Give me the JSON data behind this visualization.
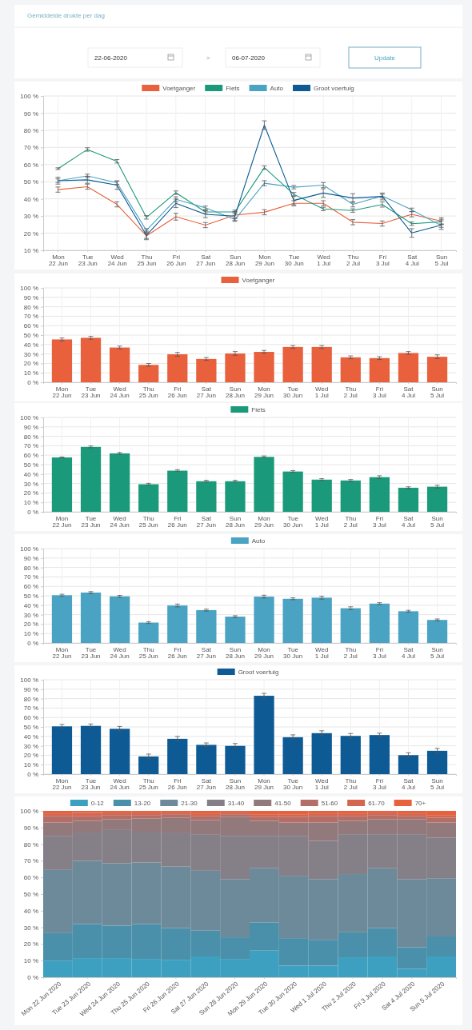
{
  "chart_data": [
    {
      "type": "other",
      "title": "Gemiddelde drukte per dag",
      "annotations": [
        "22-06-2020",
        ">",
        "06-07-2020",
        "Update"
      ]
    },
    {
      "type": "line",
      "categories": [
        "Mon 22 Jun",
        "Tue 23 Jun",
        "Wed 24 Jun",
        "Thu 25 Jun",
        "Fri 26 Jun",
        "Sat 27 Jun",
        "Sun 28 Jun",
        "Mon 29 Jun",
        "Tue 30 Jun",
        "Wed 1 Jul",
        "Thu 2 Jul",
        "Fri 3 Jul",
        "Sat 4 Jul",
        "Sun 5 Jul"
      ],
      "ylim": [
        10,
        100
      ],
      "yticks": [
        {
          "value": 10,
          "label": "10 %"
        },
        {
          "value": 20,
          "label": "20 %"
        },
        {
          "value": 30,
          "label": "30 %"
        },
        {
          "value": 40,
          "label": "40 %"
        },
        {
          "value": 50,
          "label": "50 %"
        },
        {
          "value": 60,
          "label": "60 %"
        },
        {
          "value": 70,
          "label": "70 %"
        },
        {
          "value": 80,
          "label": "80 %"
        },
        {
          "value": 90,
          "label": "90 %"
        },
        {
          "value": 100,
          "label": "100 %"
        }
      ],
      "grid": true,
      "legend": "top",
      "series": [
        {
          "name": "Voetganger",
          "color": "#e8603c",
          "values": [
            45.4,
            47.1,
            36.8,
            18.4,
            29.6,
            24.7,
            30.5,
            32.2,
            37.4,
            37.4,
            26.4,
            25.6,
            31.0,
            27.0
          ],
          "errors": [
            1.5,
            1.5,
            1.5,
            1.5,
            2,
            1.5,
            2,
            1.5,
            1.5,
            1.5,
            1.5,
            1.5,
            1.5,
            2
          ]
        },
        {
          "name": "Fiets",
          "color": "#1a9a7a",
          "values": [
            57.6,
            68.8,
            61.9,
            29.2,
            43.6,
            32.4,
            32.4,
            58.2,
            42.7,
            34.1,
            33.2,
            36.7,
            25.5,
            26.6
          ],
          "errors": [
            0.5,
            1,
            1,
            1,
            1,
            1,
            1,
            1,
            1,
            1,
            1,
            1.5,
            1,
            1.5
          ]
        },
        {
          "name": "Auto",
          "color": "#4aa3c2",
          "values": [
            50.6,
            53.4,
            49.4,
            21.6,
            39.7,
            34.8,
            27.9,
            49.1,
            46.8,
            48.0,
            36.8,
            41.7,
            33.6,
            24.4
          ],
          "errors": [
            1,
            1,
            1,
            1,
            1.5,
            1,
            1,
            1.5,
            1,
            1.5,
            1.5,
            1,
            1,
            1
          ]
        },
        {
          "name": "Groot voertuig",
          "color": "#0d5a94",
          "values": [
            50.6,
            51.1,
            48.0,
            18.7,
            37.4,
            31.0,
            29.9,
            83.0,
            39.1,
            43.4,
            40.5,
            41.4,
            20.1,
            24.7
          ],
          "errors": [
            2,
            2,
            2.5,
            2.5,
            2.5,
            2,
            2.5,
            2.5,
            2.5,
            2.5,
            2.5,
            2,
            2.5,
            2.5
          ]
        }
      ]
    },
    {
      "type": "bar",
      "categories": [
        "Mon 22 Jun",
        "Tue 23 Jun",
        "Wed 24 Jun",
        "Thu 25 Jun",
        "Fri 26 Jun",
        "Sat 27 Jun",
        "Sun 28 Jun",
        "Mon 29 Jun",
        "Tue 30 Jun",
        "Wed 1 Jul",
        "Thu 2 Jul",
        "Fri 3 Jul",
        "Sat 4 Jul",
        "Sun 5 Jul"
      ],
      "ylim": [
        0,
        100
      ],
      "yticks": [
        {
          "value": 0,
          "label": "0 %"
        },
        {
          "value": 10,
          "label": "10 %"
        },
        {
          "value": 20,
          "label": "20 %"
        },
        {
          "value": 30,
          "label": "30 %"
        },
        {
          "value": 40,
          "label": "40 %"
        },
        {
          "value": 50,
          "label": "50 %"
        },
        {
          "value": 60,
          "label": "60 %"
        },
        {
          "value": 70,
          "label": "70 %"
        },
        {
          "value": 80,
          "label": "80 %"
        },
        {
          "value": 90,
          "label": "90 %"
        },
        {
          "value": 100,
          "label": "100 %"
        }
      ],
      "grid": true,
      "legend": "top",
      "series": [
        {
          "name": "Voetganger",
          "color": "#e8603c",
          "values": [
            45.4,
            47.1,
            36.8,
            18.4,
            29.6,
            24.7,
            30.5,
            32.2,
            37.4,
            37.4,
            26.4,
            25.6,
            31.0,
            27.0
          ],
          "errors": [
            1.5,
            1.5,
            1.5,
            1.5,
            2,
            1.5,
            2,
            1.5,
            1.5,
            1.5,
            1.5,
            1.5,
            1.5,
            2
          ]
        }
      ]
    },
    {
      "type": "bar",
      "categories": [
        "Mon 22 Jun",
        "Tue 23 Jun",
        "Wed 24 Jun",
        "Thu 25 Jun",
        "Fri 26 Jun",
        "Sat 27 Jun",
        "Sun 28 Jun",
        "Mon 29 Jun",
        "Tue 30 Jun",
        "Wed 1 Jul",
        "Thu 2 Jul",
        "Fri 3 Jul",
        "Sat 4 Jul",
        "Sun 5 Jul"
      ],
      "ylim": [
        0,
        100
      ],
      "yticks": [
        {
          "value": 0,
          "label": "0 %"
        },
        {
          "value": 10,
          "label": "10 %"
        },
        {
          "value": 20,
          "label": "20 %"
        },
        {
          "value": 30,
          "label": "30 %"
        },
        {
          "value": 40,
          "label": "40 %"
        },
        {
          "value": 50,
          "label": "50 %"
        },
        {
          "value": 60,
          "label": "60 %"
        },
        {
          "value": 70,
          "label": "70 %"
        },
        {
          "value": 80,
          "label": "80 %"
        },
        {
          "value": 90,
          "label": "90 %"
        },
        {
          "value": 100,
          "label": "100 %"
        }
      ],
      "grid": true,
      "legend": "top",
      "series": [
        {
          "name": "Fiets",
          "color": "#1a9a7a",
          "values": [
            57.6,
            68.8,
            61.9,
            29.2,
            43.6,
            32.4,
            32.4,
            58.2,
            42.7,
            34.1,
            33.2,
            36.7,
            25.5,
            26.6
          ],
          "errors": [
            0.5,
            1,
            1,
            1,
            1,
            1,
            1,
            1,
            1,
            1,
            1,
            1.5,
            1,
            1.5
          ]
        }
      ]
    },
    {
      "type": "bar",
      "categories": [
        "Mon 22 Jun",
        "Tue 23 Jun",
        "Wed 24 Jun",
        "Thu 25 Jun",
        "Fri 26 Jun",
        "Sat 27 Jun",
        "Sun 28 Jun",
        "Mon 29 Jun",
        "Tue 30 Jun",
        "Wed 1 Jul",
        "Thu 2 Jul",
        "Fri 3 Jul",
        "Sat 4 Jul",
        "Sun 5 Jul"
      ],
      "ylim": [
        0,
        100
      ],
      "yticks": [
        {
          "value": 0,
          "label": "0 %"
        },
        {
          "value": 10,
          "label": "10 %"
        },
        {
          "value": 20,
          "label": "20 %"
        },
        {
          "value": 30,
          "label": "30 %"
        },
        {
          "value": 40,
          "label": "40 %"
        },
        {
          "value": 50,
          "label": "50 %"
        },
        {
          "value": 60,
          "label": "60 %"
        },
        {
          "value": 70,
          "label": "70 %"
        },
        {
          "value": 80,
          "label": "80 %"
        },
        {
          "value": 90,
          "label": "90 %"
        },
        {
          "value": 100,
          "label": "100 %"
        }
      ],
      "grid": true,
      "legend": "top",
      "series": [
        {
          "name": "Auto",
          "color": "#4aa3c2",
          "values": [
            50.6,
            53.4,
            49.4,
            21.6,
            39.7,
            34.8,
            27.9,
            49.1,
            46.8,
            48.0,
            36.8,
            41.7,
            33.6,
            24.4
          ],
          "errors": [
            1,
            1,
            1,
            1,
            1.5,
            1,
            1,
            1.5,
            1,
            1.5,
            1.5,
            1,
            1,
            1
          ]
        }
      ]
    },
    {
      "type": "bar",
      "categories": [
        "Mon 22 Jun",
        "Tue 23 Jun",
        "Wed 24 Jun",
        "Thu 25 Jun",
        "Fri 26 Jun",
        "Sat 27 Jun",
        "Sun 28 Jun",
        "Mon 29 Jun",
        "Tue 30 Jun",
        "Wed 1 Jul",
        "Thu 2 Jul",
        "Fri 3 Jul",
        "Sat 4 Jul",
        "Sun 5 Jul"
      ],
      "ylim": [
        0,
        100
      ],
      "yticks": [
        {
          "value": 0,
          "label": "0 %"
        },
        {
          "value": 10,
          "label": "10 %"
        },
        {
          "value": 20,
          "label": "20 %"
        },
        {
          "value": 30,
          "label": "30 %"
        },
        {
          "value": 40,
          "label": "40 %"
        },
        {
          "value": 50,
          "label": "50 %"
        },
        {
          "value": 60,
          "label": "60 %"
        },
        {
          "value": 70,
          "label": "70 %"
        },
        {
          "value": 80,
          "label": "80 %"
        },
        {
          "value": 90,
          "label": "90 %"
        },
        {
          "value": 100,
          "label": "100 %"
        }
      ],
      "grid": true,
      "legend": "top",
      "series": [
        {
          "name": "Groot voertuig",
          "color": "#0d5a94",
          "values": [
            50.6,
            51.1,
            48.0,
            18.7,
            37.4,
            31.0,
            29.9,
            83.0,
            39.1,
            43.4,
            40.5,
            41.4,
            20.1,
            24.7
          ],
          "errors": [
            2,
            2,
            2.5,
            2.5,
            2.5,
            2,
            2.5,
            2.5,
            2.5,
            2.5,
            2.5,
            2,
            2.5,
            2.5
          ]
        }
      ]
    },
    {
      "type": "bar",
      "stacked": true,
      "categories": [
        "Mon 22 Jun 2020",
        "Tue 23 Jun 2020",
        "Wed 24 Jun 2020",
        "Thu 25 Jun 2020",
        "Fri 26 Jun 2020",
        "Sat 27 Jun 2020",
        "Sun 28 Jun 2020",
        "Mon 29 Jun 2020",
        "Tue 30 Jun 2020",
        "Wed 1 Jul 2020",
        "Thu 2 Jul 2020",
        "Fri 3 Jul 2020",
        "Sat 4 Jul 2020",
        "Sun 5 Jul 2020"
      ],
      "ylim": [
        0,
        100
      ],
      "yticks": [
        {
          "value": 0,
          "label": "0 %"
        },
        {
          "value": 10,
          "label": "10 %"
        },
        {
          "value": 20,
          "label": "20 %"
        },
        {
          "value": 30,
          "label": "30 %"
        },
        {
          "value": 40,
          "label": "40 %"
        },
        {
          "value": 50,
          "label": "50 %"
        },
        {
          "value": 60,
          "label": "60 %"
        },
        {
          "value": 70,
          "label": "70 %"
        },
        {
          "value": 80,
          "label": "80 %"
        },
        {
          "value": 90,
          "label": "90 %"
        },
        {
          "value": 100,
          "label": "100 %"
        }
      ],
      "legend": "top",
      "series": [
        {
          "name": "0-12",
          "color": "#3ea0c0",
          "values": [
            10,
            11.5,
            11.5,
            11,
            10.5,
            12.5,
            11,
            16,
            7,
            7,
            12,
            12.5,
            5,
            12.5
          ]
        },
        {
          "name": "13-20",
          "color": "#4a90aa",
          "values": [
            16.5,
            20.5,
            19.5,
            21,
            19,
            15.5,
            13,
            17,
            16.5,
            15.5,
            15,
            17,
            13,
            12
          ]
        },
        {
          "name": "21-30",
          "color": "#6c8a99",
          "values": [
            38,
            38,
            37.5,
            37,
            37,
            36,
            35,
            32.5,
            37.5,
            36.5,
            35,
            36,
            41,
            35
          ]
        },
        {
          "name": "31-40",
          "color": "#857f88",
          "values": [
            20.5,
            17,
            20,
            18.5,
            20.5,
            22,
            26,
            19.5,
            24,
            23,
            24,
            20.5,
            27,
            24.5
          ]
        },
        {
          "name": "41-50",
          "color": "#92797c",
          "values": [
            8,
            7,
            6.5,
            8,
            9,
            8.5,
            11.5,
            9,
            8,
            11,
            8,
            9,
            9,
            9
          ]
        },
        {
          "name": "51-60",
          "color": "#b46e66",
          "values": [
            4,
            3,
            2.5,
            2,
            2,
            2.5,
            1.5,
            2.5,
            3.5,
            4,
            3,
            2.5,
            2,
            3
          ]
        },
        {
          "name": "61-70",
          "color": "#d46650",
          "values": [
            1.5,
            1.8,
            1.5,
            1.5,
            1,
            1.5,
            1,
            1.5,
            1.5,
            1.5,
            1.5,
            1.5,
            1.5,
            1.5
          ]
        },
        {
          "name": "70+",
          "color": "#e8603c",
          "values": [
            1.5,
            1.2,
            1,
            1,
            1,
            1.5,
            1,
            2,
            2,
            1.5,
            1.5,
            1,
            1.5,
            2.5
          ]
        }
      ]
    }
  ]
}
